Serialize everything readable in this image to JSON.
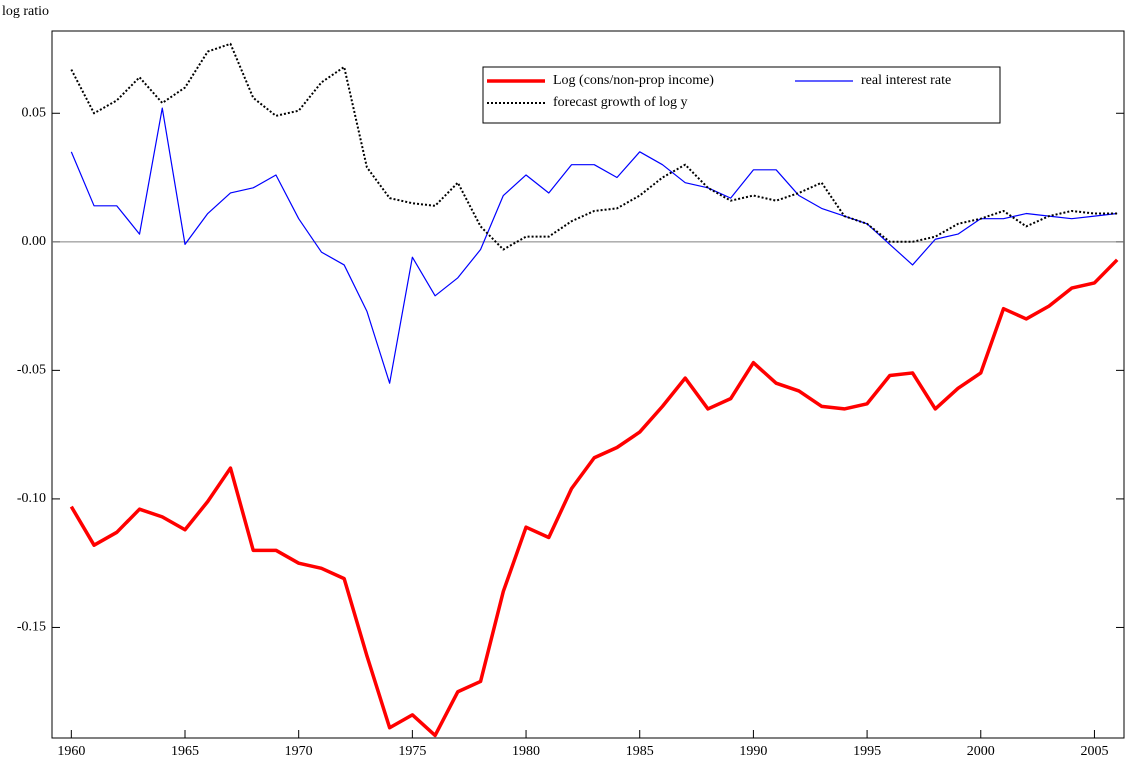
{
  "chart_data": {
    "type": "line",
    "y_label": "log ratio",
    "x": [
      1960,
      1961,
      1962,
      1963,
      1964,
      1965,
      1966,
      1967,
      1968,
      1969,
      1970,
      1971,
      1972,
      1973,
      1974,
      1975,
      1976,
      1977,
      1978,
      1979,
      1980,
      1981,
      1982,
      1983,
      1984,
      1985,
      1986,
      1987,
      1988,
      1989,
      1990,
      1991,
      1992,
      1993,
      1994,
      1995,
      1996,
      1997,
      1998,
      1999,
      2000,
      2001,
      2002,
      2003,
      2004,
      2005,
      2006
    ],
    "series": [
      {
        "name": "Log (cons/non-prop income)",
        "color": "#ff0000",
        "width": 3.5,
        "dash": "none",
        "values": [
          -0.103,
          -0.118,
          -0.113,
          -0.104,
          -0.107,
          -0.112,
          -0.101,
          -0.088,
          -0.12,
          -0.12,
          -0.125,
          -0.127,
          -0.131,
          -0.161,
          -0.189,
          -0.184,
          -0.192,
          -0.175,
          -0.171,
          -0.136,
          -0.111,
          -0.115,
          -0.096,
          -0.084,
          -0.08,
          -0.074,
          -0.064,
          -0.053,
          -0.065,
          -0.061,
          -0.047,
          -0.055,
          -0.058,
          -0.064,
          -0.065,
          -0.063,
          -0.052,
          -0.051,
          -0.065,
          -0.057,
          -0.051,
          -0.026,
          -0.03,
          -0.025,
          -0.018,
          -0.016,
          -0.007
        ]
      },
      {
        "name": "real interest rate",
        "color": "#0000ff",
        "width": 1.2,
        "dash": "none",
        "values": [
          0.035,
          0.014,
          0.014,
          0.003,
          0.052,
          -0.001,
          0.011,
          0.019,
          0.021,
          0.026,
          0.009,
          -0.004,
          -0.009,
          -0.027,
          -0.055,
          -0.006,
          -0.021,
          -0.014,
          -0.003,
          0.018,
          0.026,
          0.019,
          0.03,
          0.03,
          0.025,
          0.035,
          0.03,
          0.023,
          0.021,
          0.017,
          0.028,
          0.028,
          0.018,
          0.013,
          0.01,
          0.007,
          -0.001,
          -0.009,
          0.001,
          0.003,
          0.009,
          0.009,
          0.011,
          0.01,
          0.009,
          0.01,
          0.011
        ]
      },
      {
        "name": "forecast growth of log y",
        "color": "#000000",
        "width": 2,
        "dash": "2 2",
        "values": [
          0.067,
          0.05,
          0.055,
          0.064,
          0.054,
          0.06,
          0.074,
          0.077,
          0.056,
          0.049,
          0.051,
          0.062,
          0.068,
          0.029,
          0.017,
          0.015,
          0.014,
          0.023,
          0.006,
          -0.003,
          0.002,
          0.002,
          0.008,
          0.012,
          0.013,
          0.018,
          0.025,
          0.03,
          0.021,
          0.016,
          0.018,
          0.016,
          0.019,
          0.023,
          0.01,
          0.007,
          0.0,
          0.0,
          0.002,
          0.007,
          0.009,
          0.012,
          0.006,
          0.01,
          0.012,
          0.011,
          0.011
        ]
      }
    ],
    "xlim": [
      1959.15,
      2006.3
    ],
    "ylim": [
      -0.193,
      0.082
    ],
    "xticks": [
      1960,
      1965,
      1970,
      1975,
      1980,
      1985,
      1990,
      1995,
      2000,
      2005
    ],
    "yticks": [
      0.05,
      {
        "value": 0,
        "label": "0.00"
      },
      -0.05,
      {
        "value": -0.1,
        "label": "-0.10"
      },
      -0.15
    ],
    "zero_line": true
  }
}
